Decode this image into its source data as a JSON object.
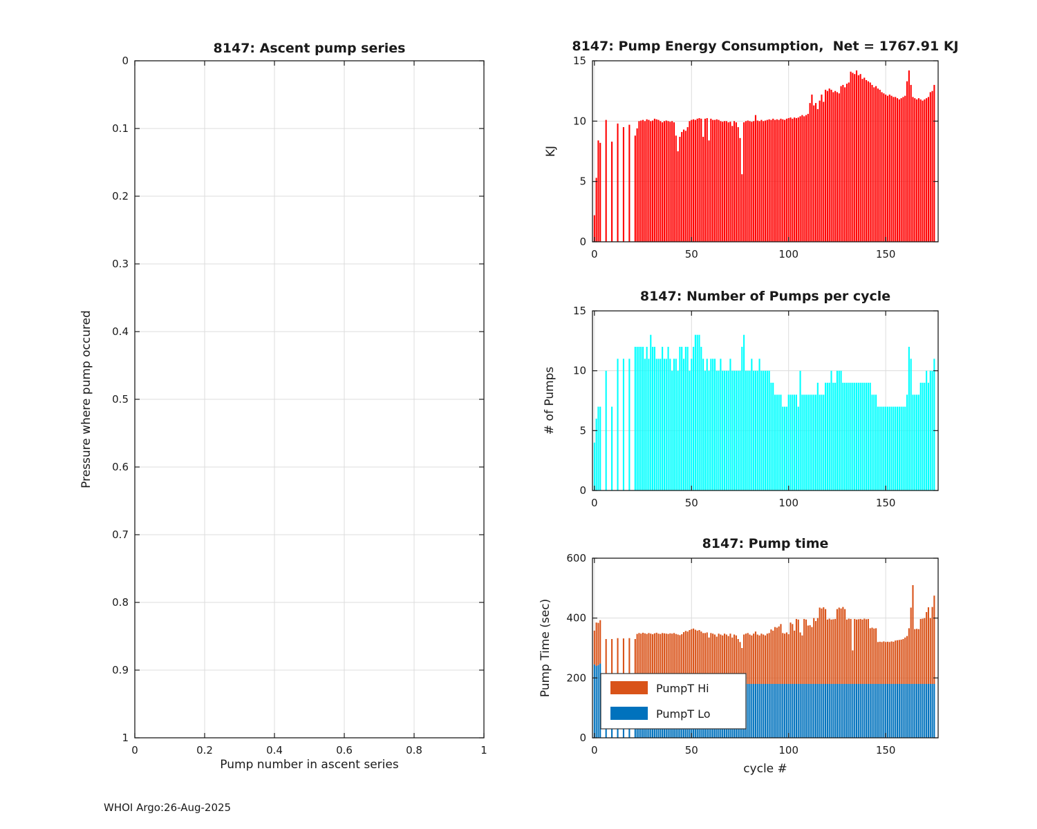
{
  "figure": {
    "footer": "WHOI Argo:26-Aug-2025",
    "background": "#ffffff"
  },
  "chart_data": [
    {
      "id": "ascent-series",
      "type": "empty",
      "title": "8147: Ascent pump series",
      "xlabel": "Pump number in ascent series",
      "ylabel": "Pressure where pump occured",
      "xlim": [
        0,
        1
      ],
      "ylim": [
        0,
        1
      ],
      "y_direction": "reverse",
      "grid": true,
      "xticks": [
        0,
        0.2,
        0.4,
        0.6,
        0.8,
        1
      ],
      "yticks": [
        0,
        0.1,
        0.2,
        0.3,
        0.4,
        0.5,
        0.6,
        0.7,
        0.8,
        0.9,
        1
      ],
      "note": "empty axes - no data plotted"
    },
    {
      "id": "pump-energy",
      "type": "bar",
      "title": "8147: Pump Energy Consumption,  Net = 1767.91 KJ",
      "net_total_label": "1767.91 KJ",
      "xlabel": "",
      "ylabel": "KJ",
      "color": "#ff0000",
      "grid": true,
      "ylim": [
        0,
        15
      ],
      "yticks": [
        15,
        10,
        5,
        0
      ],
      "xticks": [
        0,
        50,
        100,
        150
      ],
      "x_start": 0,
      "values": [
        2.2,
        5.3,
        8.4,
        8.2,
        0,
        0,
        10.1,
        0,
        0,
        8.3,
        0,
        0,
        9.8,
        0,
        0,
        9.5,
        0,
        0,
        9.7,
        0,
        0,
        8.8,
        9.4,
        10,
        10.05,
        10.1,
        10,
        10.15,
        10.1,
        10,
        10.05,
        10.2,
        10.15,
        10.1,
        10,
        9.9,
        10,
        10.05,
        10,
        9.95,
        10,
        9.9,
        8.8,
        7.5,
        8.7,
        9.1,
        9.3,
        9.2,
        9.5,
        10,
        10.1,
        10.15,
        10.1,
        10.2,
        10.25,
        10.2,
        8.7,
        10.2,
        10.25,
        8.4,
        10.2,
        10.1,
        10.1,
        10.15,
        10.1,
        10,
        9.95,
        10,
        10,
        9.9,
        9.95,
        9.6,
        10,
        9.9,
        9.5,
        8.6,
        5.6,
        9.9,
        10,
        10.05,
        10,
        9.95,
        10,
        10.5,
        10.05,
        10,
        10.1,
        10,
        10.05,
        10.1,
        10.15,
        10.1,
        10.2,
        10.1,
        10.15,
        10.1,
        10.2,
        10.15,
        10.1,
        10.2,
        10.25,
        10.3,
        10.2,
        10.3,
        10.25,
        10.3,
        10.4,
        10.5,
        10.4,
        10.5,
        10.6,
        11.5,
        12.2,
        11.3,
        11.5,
        11,
        11.7,
        12.2,
        11.6,
        12.6,
        12.5,
        12.7,
        12.6,
        12.4,
        12.5,
        12.4,
        12.3,
        12.9,
        13,
        12.8,
        13.1,
        13.2,
        14.1,
        14,
        13.9,
        14.2,
        13.8,
        13.9,
        13.5,
        13.6,
        13.4,
        13.3,
        13.2,
        13,
        12.8,
        12.9,
        12.7,
        12.6,
        12.4,
        12.3,
        12.2,
        12.1,
        12.2,
        12.1,
        12,
        12,
        11.9,
        11.8,
        11.9,
        12,
        12.1,
        13.3,
        14.2,
        13,
        12,
        11.9,
        11.8,
        11.9,
        11.8,
        11.7,
        11.8,
        11.9,
        12,
        12.4,
        12.5,
        13
      ]
    },
    {
      "id": "pumps-per-cycle",
      "type": "bar",
      "title": "8147: Number of Pumps per cycle",
      "xlabel": "",
      "ylabel": "# of Pumps",
      "color": "#00ffff",
      "grid": true,
      "ylim": [
        0,
        15
      ],
      "yticks": [
        15,
        10,
        5,
        0
      ],
      "xticks": [
        0,
        50,
        100,
        150
      ],
      "x_start": 0,
      "values": [
        4,
        6,
        7,
        7,
        0,
        0,
        10,
        0,
        0,
        7,
        0,
        0,
        11,
        0,
        0,
        11,
        0,
        0,
        11,
        0,
        0,
        12,
        12,
        12,
        12,
        12,
        11,
        12,
        11,
        13,
        12,
        12,
        11,
        11,
        11,
        12,
        11,
        11,
        12,
        11,
        10,
        11,
        11,
        10,
        12,
        12,
        11,
        12,
        12,
        10,
        11,
        12,
        13,
        13,
        13,
        12,
        11,
        10,
        11,
        10,
        11,
        11,
        11,
        10,
        10,
        11,
        10,
        10,
        10,
        10,
        11,
        10,
        10,
        10,
        10,
        10,
        12,
        13,
        10,
        10,
        10,
        11,
        10,
        10,
        10,
        11,
        10,
        10,
        10,
        10,
        10,
        9,
        9,
        8,
        8,
        8,
        8,
        7,
        7,
        7,
        8,
        8,
        8,
        8,
        8,
        7,
        10,
        8,
        8,
        8,
        8,
        8,
        8,
        8,
        8,
        9,
        8,
        8,
        8,
        9,
        9,
        9,
        10,
        9,
        9,
        10,
        10,
        10,
        9,
        9,
        9,
        9,
        9,
        9,
        9,
        9,
        9,
        9,
        9,
        9,
        9,
        9,
        9,
        8,
        8,
        8,
        7,
        7,
        7,
        7,
        7,
        7,
        7,
        7,
        7,
        7,
        7,
        7,
        7,
        7,
        7,
        8,
        12,
        11,
        8,
        8,
        8,
        8,
        9,
        9,
        9,
        10,
        9,
        10,
        10,
        11
      ]
    },
    {
      "id": "pump-time",
      "type": "stacked_bar",
      "title": "8147: Pump time",
      "xlabel": "cycle #",
      "ylabel": "Pump Time (sec)",
      "grid": true,
      "ylim": [
        0,
        600
      ],
      "yticks": [
        600,
        400,
        200,
        0
      ],
      "xticks": [
        0,
        50,
        100,
        150
      ],
      "x_start": 0,
      "legend": {
        "position": "southwest",
        "entries": [
          {
            "label": "PumpT Hi",
            "color": "#d95319"
          },
          {
            "label": "PumpT Lo",
            "color": "#0072bd"
          }
        ]
      },
      "series": [
        {
          "name": "PumpT Lo",
          "color": "#0072bd",
          "values": [
            245,
            240,
            243,
            248,
            0,
            0,
            200,
            0,
            0,
            196,
            0,
            0,
            198,
            0,
            0,
            196,
            0,
            0,
            197,
            0,
            0,
            196,
            195,
            195,
            195,
            195,
            195,
            195,
            195,
            195,
            195,
            195,
            195,
            195,
            195,
            195,
            195,
            195,
            195,
            195,
            195,
            195,
            195,
            195,
            195,
            195,
            195,
            195,
            195,
            195,
            195,
            195,
            195,
            195,
            195,
            195,
            195,
            180,
            180,
            180,
            180,
            180,
            180,
            180,
            180,
            180,
            180,
            180,
            180,
            180,
            180,
            180,
            180,
            180,
            180,
            180,
            180,
            180,
            180,
            180,
            180,
            180,
            180,
            180,
            180,
            180,
            180,
            180,
            180,
            180,
            180,
            180,
            180,
            180,
            180,
            180,
            180,
            180,
            180,
            180,
            180,
            180,
            180,
            180,
            180,
            180,
            180,
            180,
            180,
            180,
            180,
            180,
            180,
            180,
            180,
            180,
            180,
            180,
            180,
            180,
            180,
            180,
            180,
            180,
            180,
            180,
            180,
            180,
            180,
            180,
            180,
            180,
            180,
            180,
            180,
            180,
            180,
            180,
            180,
            180,
            180,
            180,
            180,
            180,
            180,
            180,
            180,
            180,
            180,
            180,
            180,
            180,
            180,
            180,
            180,
            180,
            180,
            180,
            180,
            180,
            180,
            180,
            180,
            180,
            180,
            180,
            180,
            180,
            180,
            180,
            180,
            180,
            180,
            180,
            180,
            180
          ]
        },
        {
          "name": "PumpT Hi",
          "color": "#d95319",
          "values": [
            113,
            145,
            141,
            145,
            0,
            0,
            130,
            0,
            0,
            134,
            0,
            0,
            135,
            0,
            0,
            136,
            0,
            0,
            136,
            0,
            0,
            134,
            152,
            155,
            153,
            156,
            154,
            152,
            155,
            153,
            151,
            154,
            156,
            153,
            152,
            155,
            154,
            153,
            152,
            154,
            153,
            155,
            152,
            150,
            148,
            151,
            158,
            162,
            160,
            165,
            168,
            170,
            166,
            163,
            165,
            160,
            155,
            170,
            172,
            155,
            170,
            168,
            165,
            158,
            168,
            165,
            162,
            168,
            165,
            160,
            168,
            155,
            165,
            162,
            150,
            140,
            120,
            165,
            168,
            170,
            165,
            162,
            168,
            175,
            165,
            162,
            168,
            165,
            162,
            168,
            170,
            182,
            178,
            190,
            188,
            192,
            200,
            170,
            168,
            172,
            166,
            205,
            200,
            178,
            217,
            215,
            172,
            162,
            217,
            215,
            195,
            196,
            190,
            220,
            210,
            220,
            255,
            252,
            256,
            250,
            215,
            218,
            215,
            216,
            217,
            250,
            255,
            252,
            257,
            250,
            215,
            218,
            217,
            112,
            217,
            215,
            216,
            217,
            215,
            218,
            216,
            217,
            186,
            188,
            185,
            186,
            140,
            141,
            140,
            142,
            140,
            141,
            140,
            142,
            141,
            145,
            146,
            147,
            148,
            150,
            155,
            160,
            186,
            255,
            330,
            183,
            184,
            183,
            217,
            218,
            220,
            240,
            256,
            220,
            257,
            295
          ]
        }
      ]
    }
  ]
}
